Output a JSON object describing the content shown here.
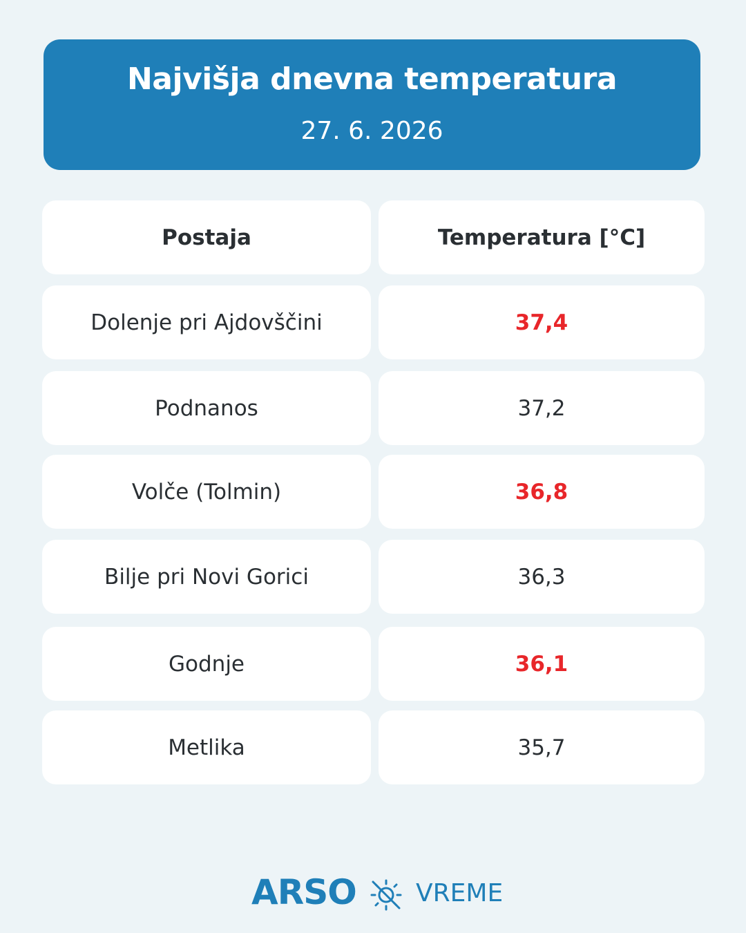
{
  "header": {
    "title": "Najvišja dnevna temperatura",
    "date": "27. 6. 2026"
  },
  "table": {
    "columns": [
      "Postaja",
      "Temperatura [°C]"
    ],
    "rows": [
      [
        "Dolenje pri Ajdovščini",
        "37,4"
      ],
      [
        "Podnanos",
        "37,2"
      ],
      [
        "Volče (Tolmin)",
        "36,8"
      ],
      [
        "Bilje pri Novi Gorici",
        "36,3"
      ],
      [
        "Godnje",
        "36,1"
      ],
      [
        "Metlika",
        "35,7"
      ]
    ],
    "highlight_rows": [
      0,
      2,
      4
    ],
    "highlight_color": "#e8262a"
  },
  "footer": {
    "brand": "ARSO",
    "section": "VREME"
  }
}
